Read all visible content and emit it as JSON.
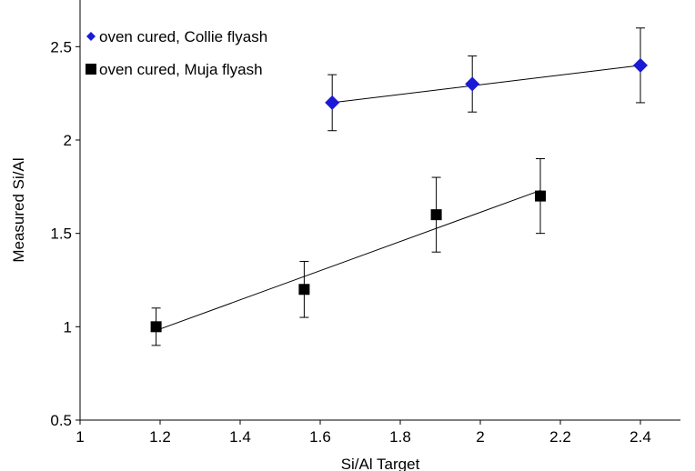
{
  "chart_data": {
    "type": "scatter",
    "title": "",
    "xlabel": "Si/Al Target",
    "ylabel": "Measured Si/Al",
    "xlim": [
      1,
      2.5
    ],
    "ylim": [
      0.5,
      2.75
    ],
    "x_ticks": [
      1,
      1.2,
      1.4,
      1.6,
      1.8,
      2,
      2.2,
      2.4
    ],
    "x_tick_labels": [
      "1",
      "1.2",
      "1.4",
      "1.6",
      "1.8",
      "2",
      "2.2",
      "2.4"
    ],
    "y_ticks": [
      0.5,
      1,
      1.5,
      2,
      2.5
    ],
    "y_tick_labels": [
      "0.5",
      "1",
      "1.5",
      "2",
      "2.5"
    ],
    "grid": false,
    "legend_position": "top-left",
    "series": [
      {
        "name": "oven cured, Collie flyash",
        "marker": "diamond",
        "color": "#1a1ad6",
        "x": [
          1.63,
          1.98,
          2.4
        ],
        "y": [
          2.2,
          2.3,
          2.4
        ],
        "y_err_low": [
          2.05,
          2.15,
          2.2
        ],
        "y_err_high": [
          2.35,
          2.45,
          2.6
        ],
        "trendline": {
          "x": [
            1.63,
            2.4
          ],
          "y": [
            2.2,
            2.4
          ]
        }
      },
      {
        "name": "oven cured, Muja flyash",
        "marker": "square",
        "color": "#000000",
        "x": [
          1.19,
          1.56,
          1.89,
          2.15
        ],
        "y": [
          1.0,
          1.2,
          1.6,
          1.7
        ],
        "y_err_low": [
          0.9,
          1.05,
          1.4,
          1.5
        ],
        "y_err_high": [
          1.1,
          1.35,
          1.8,
          1.9
        ],
        "trendline": {
          "x": [
            1.19,
            2.15
          ],
          "y": [
            0.98,
            1.73
          ]
        }
      }
    ]
  }
}
